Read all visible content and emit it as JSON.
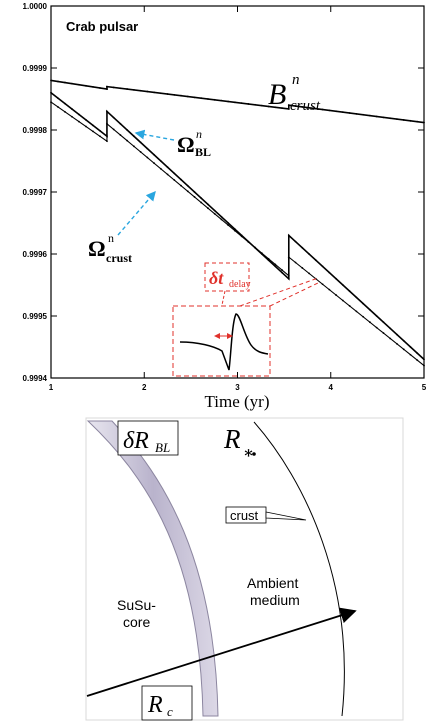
{
  "chart_data": {
    "type": "line",
    "title": "Crab pulsar",
    "xlabel": "Time (yr)",
    "ylabel": "",
    "xlim": [
      1,
      5
    ],
    "ylim": [
      0.9994,
      1.0
    ],
    "x_ticks": [
      "1",
      "2",
      "3",
      "4",
      "5"
    ],
    "y_ticks": [
      "0.9994",
      "0.9995",
      "0.9996",
      "0.9997",
      "0.9998",
      "0.9999",
      "1.0000"
    ],
    "grid": false,
    "series": [
      {
        "name": "B_crust^n",
        "color": "#000000",
        "x": [
          1.0,
          1.6,
          1.6,
          3.55,
          3.55,
          5.0
        ],
        "y": [
          0.99988,
          0.999866,
          0.99987,
          0.999834,
          0.99984,
          0.999812
        ]
      },
      {
        "name": "Ω_BL^n",
        "color": "#000000",
        "x": [
          1.0,
          1.6,
          1.6,
          3.55,
          3.55,
          5.0
        ],
        "y": [
          0.99986,
          0.99979,
          0.99983,
          0.99956,
          0.99963,
          0.99943
        ]
      },
      {
        "name": "Ω_crust^n",
        "color": "#000000",
        "x": [
          1.0,
          1.6,
          1.6,
          3.55,
          3.55,
          5.0
        ],
        "y": [
          0.999845,
          0.999782,
          0.99981,
          0.999565,
          0.999595,
          0.99942
        ]
      }
    ],
    "annotations": {
      "b_main": "B",
      "b_sup": "n",
      "b_sub": "crust",
      "obl_main": "Ω",
      "obl_sup": "n",
      "obl_sub": "BL",
      "ocr_main": "Ω",
      "ocr_sup": "n",
      "ocr_sub": "crust",
      "delta_t": "δt",
      "delta_t_sub": "delay"
    }
  },
  "diagram": {
    "delta_r": "δR",
    "delta_r_sub": "BL",
    "r_star": "R",
    "r_star_sub": "∗",
    "crust_label": "crust",
    "ambient_line1": "Ambient",
    "ambient_line2": "medium",
    "core_line1": "SuSu-",
    "core_line2": "core",
    "r_c": "R",
    "r_c_sub": "c"
  },
  "colors": {
    "accent_red": "#e0312b",
    "arrow_blue": "#2aa6df",
    "band_fill": "#c8c4d8"
  }
}
